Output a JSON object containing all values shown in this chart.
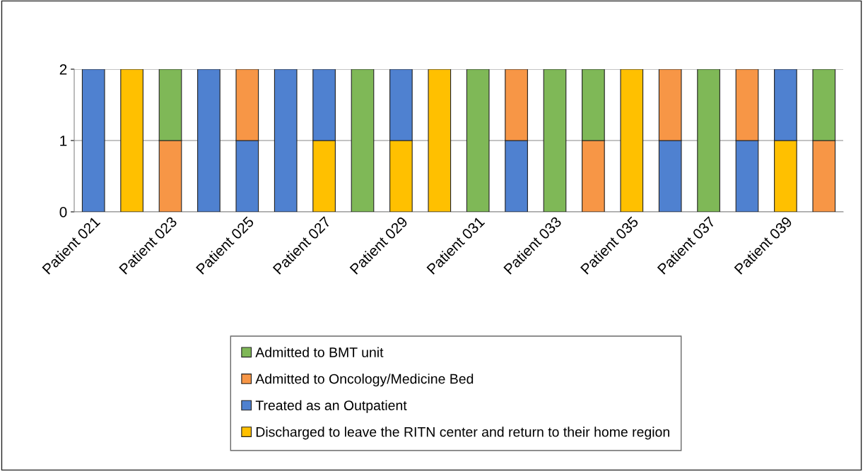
{
  "chart_data": {
    "type": "bar",
    "stacked": true,
    "categories": [
      "Patient 021",
      null,
      "Patient 023",
      null,
      "Patient 025",
      null,
      "Patient 027",
      null,
      "Patient 029",
      null,
      "Patient 031",
      null,
      "Patient 033",
      null,
      "Patient 035",
      null,
      "Patient 037",
      null,
      "Patient 039",
      null
    ],
    "series": [
      {
        "name": "Discharged to leave the RITN center and return to their home region",
        "color": "#ffc000",
        "values": [
          null,
          2,
          null,
          null,
          null,
          null,
          1,
          null,
          1,
          2,
          null,
          null,
          null,
          null,
          2,
          null,
          null,
          null,
          1,
          null
        ]
      },
      {
        "name": "Treated as an Outpatient",
        "color": "#4f81d0",
        "values": [
          2,
          null,
          null,
          2,
          1,
          2,
          1,
          null,
          1,
          null,
          null,
          1,
          null,
          null,
          null,
          1,
          null,
          1,
          1,
          null
        ]
      },
      {
        "name": "Admitted to Oncology/Medicine Bed",
        "color": "#f79646",
        "values": [
          null,
          null,
          1,
          null,
          1,
          null,
          null,
          null,
          null,
          null,
          null,
          1,
          null,
          1,
          null,
          1,
          null,
          1,
          null,
          1
        ]
      },
      {
        "name": "Admitted to BMT unit",
        "color": "#7fb857",
        "values": [
          null,
          null,
          1,
          null,
          null,
          null,
          null,
          2,
          null,
          null,
          2,
          null,
          2,
          1,
          null,
          null,
          2,
          null,
          null,
          1
        ]
      }
    ],
    "ylim": [
      0,
      2
    ],
    "yticks": [
      0,
      1,
      2
    ],
    "grid": "y",
    "legend": "bottom"
  }
}
